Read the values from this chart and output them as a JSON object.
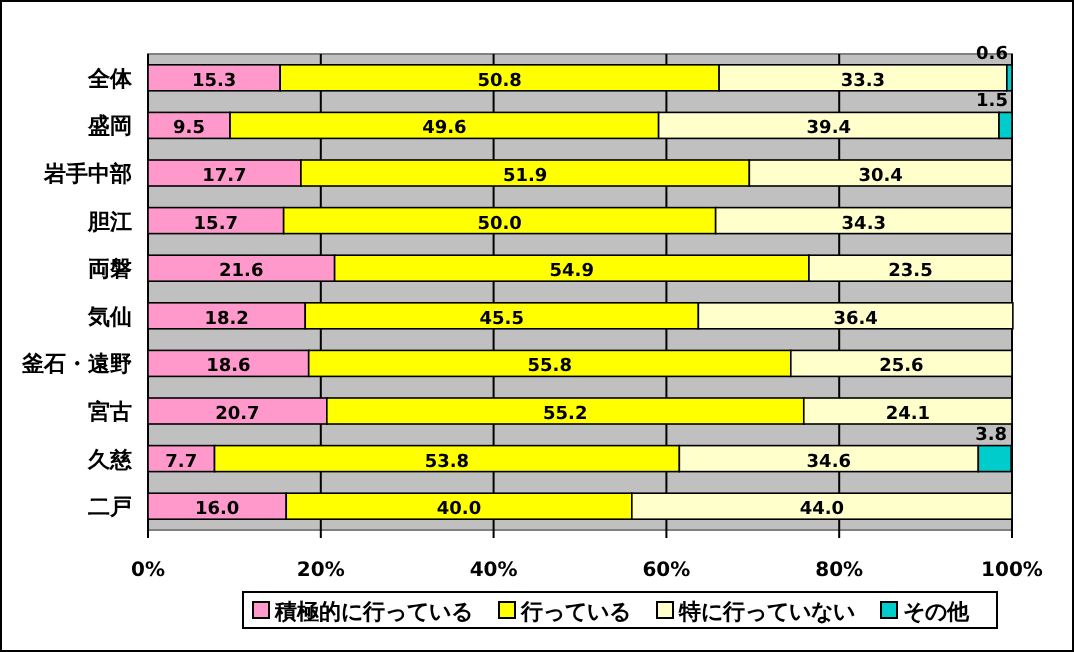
{
  "chart_data": {
    "type": "bar",
    "orientation": "horizontal",
    "stacked": true,
    "grid": "x",
    "legend": "bottom",
    "categories": [
      "全体",
      "盛岡",
      "岩手中部",
      "胆江",
      "両磐",
      "気仙",
      "釜石・遠野",
      "宮古",
      "久慈",
      "二戸"
    ],
    "xlim": [
      0,
      100
    ],
    "xticks": [
      {
        "value": 0,
        "label": "0%"
      },
      {
        "value": 20,
        "label": "20%"
      },
      {
        "value": 40,
        "label": "40%"
      },
      {
        "value": 60,
        "label": "60%"
      },
      {
        "value": 80,
        "label": "80%"
      },
      {
        "value": 100,
        "label": "100%"
      }
    ],
    "series": [
      {
        "name": "積極的に行っている",
        "color": "#ff99cc",
        "values": [
          15.3,
          9.5,
          17.7,
          15.7,
          21.6,
          18.2,
          18.6,
          20.7,
          7.7,
          16.0
        ],
        "value_labels": [
          "15.3",
          "9.5",
          "17.7",
          "15.7",
          "21.6",
          "18.2",
          "18.6",
          "20.7",
          "7.7",
          "16.0"
        ]
      },
      {
        "name": "行っている",
        "color": "#ffff00",
        "values": [
          50.8,
          49.6,
          51.9,
          50.0,
          54.9,
          45.5,
          55.8,
          55.2,
          53.8,
          40.0
        ],
        "value_labels": [
          "50.8",
          "49.6",
          "51.9",
          "50.0",
          "54.9",
          "45.5",
          "55.8",
          "55.2",
          "53.8",
          "40.0"
        ]
      },
      {
        "name": "特に行っていない",
        "color": "#ffffcc",
        "values": [
          33.3,
          39.4,
          30.4,
          34.3,
          23.5,
          36.4,
          25.6,
          24.1,
          34.6,
          44.0
        ],
        "value_labels": [
          "33.3",
          "39.4",
          "30.4",
          "34.3",
          "23.5",
          "36.4",
          "25.6",
          "24.1",
          "34.6",
          "44.0"
        ]
      },
      {
        "name": "その他",
        "color": "#00cccc",
        "values": [
          0.6,
          1.5,
          null,
          null,
          null,
          null,
          null,
          null,
          3.8,
          null
        ],
        "value_labels": [
          "0.6",
          "1.5",
          null,
          null,
          null,
          null,
          null,
          null,
          "3.8",
          null
        ]
      }
    ]
  }
}
